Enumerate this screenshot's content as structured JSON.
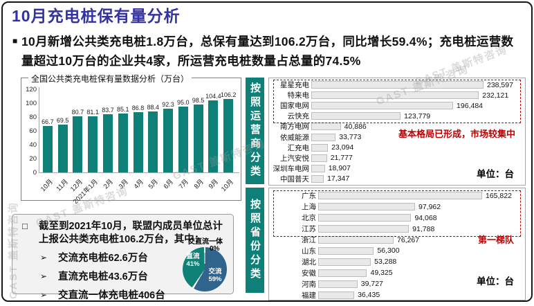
{
  "page": {
    "title": "10月充电桩保有量分析",
    "bullet_icon": "■",
    "bullet_text": "10月新增公共类充电桩1.8万台，总保有量达到106.2万台，同比增长59.4%；充电桩运营数量超过10万台的企业共4家，所运营充电桩数量占总量的74.5%",
    "watermark": "GAST 盖斯特咨询",
    "colors": {
      "title": "#3333A0",
      "teal": "#0E8077",
      "accent_red": "#C00000",
      "pie_blue": "#31648C",
      "pie_teal": "#0F8177"
    }
  },
  "chart_data": [
    {
      "id": "national_trend",
      "type": "bar",
      "orientation": "vertical",
      "title": "全国公共类充电桩保有量数据分析（万台）",
      "categories": [
        "10月",
        "11月",
        "12月",
        "2021年1月",
        "2月",
        "3月",
        "4月",
        "5月",
        "6月",
        "7月",
        "8月",
        "9月",
        "10月"
      ],
      "values": [
        66.7,
        69.5,
        80.7,
        81.1,
        83.7,
        85.1,
        86.8,
        88.4,
        92.3,
        95.0,
        98.5,
        104.4,
        106.2
      ],
      "ylim": [
        0,
        120
      ],
      "yticks": [
        0,
        20,
        40,
        60,
        80,
        100,
        120
      ],
      "grid": false,
      "value_labels": true,
      "bar_color": "#0E8077"
    },
    {
      "id": "by_operator",
      "type": "bar",
      "orientation": "horizontal",
      "side_label": "按照运营商分类",
      "categories": [
        "星星充电",
        "特来电",
        "国家电网",
        "云快充",
        "南方电网",
        "依威能源",
        "汇充电",
        "上汽安悦",
        "深圳车电网",
        "中国普天"
      ],
      "values": [
        238597,
        232121,
        196484,
        123779,
        40886,
        33773,
        23094,
        21777,
        18907,
        17347
      ],
      "value_labels": [
        "238,597",
        "232,121",
        "196,484",
        "123,779",
        "40,886",
        "33,773",
        "23,094",
        "21,777",
        "18,907",
        "17,347"
      ],
      "highlight_count": 4,
      "annotation": "基本格局已形成，市场较集中",
      "unit_label": "单位：台",
      "bar_fill": "#E9E9E9",
      "bar_border": "#BDBDBD"
    },
    {
      "id": "by_province",
      "type": "bar",
      "orientation": "horizontal",
      "side_label": "按照省份分类",
      "categories": [
        "广东",
        "上海",
        "北京",
        "江苏",
        "浙江",
        "山东",
        "湖北",
        "安徽",
        "河南",
        "福建"
      ],
      "values": [
        165822,
        97962,
        94068,
        91788,
        76267,
        56300,
        53288,
        49325,
        39727,
        36435
      ],
      "value_labels": [
        "165,822",
        "97,962",
        "94,068",
        "91,788",
        "76,267",
        "56,300",
        "53,288",
        "49,325",
        "39,727",
        "36,435"
      ],
      "highlight_count": 4,
      "annotation": "第一梯队",
      "unit_label": "单位：台",
      "bar_fill": "#E9E9E9",
      "bar_border": "#BDBDBD"
    },
    {
      "id": "pile_type_share",
      "type": "pie",
      "labels": [
        "交流",
        "直流",
        "交直流一体"
      ],
      "values_pct": [
        59,
        41,
        0
      ],
      "colors": [
        "#31648C",
        "#0F8177",
        "#FFFFFF"
      ],
      "outside_label": "交直流一体",
      "outside_value": "0%"
    }
  ],
  "summary_box": {
    "bullet_icon": "□",
    "arrow_icon": "➢",
    "header": "截至到2021年10月，联盟内成员单位总计上报公共类充电桩106.2万台，其中：",
    "items": [
      "交流充电桩62.6万台",
      "直流充电桩43.6万台",
      "交直流一体充电桩406台"
    ]
  }
}
